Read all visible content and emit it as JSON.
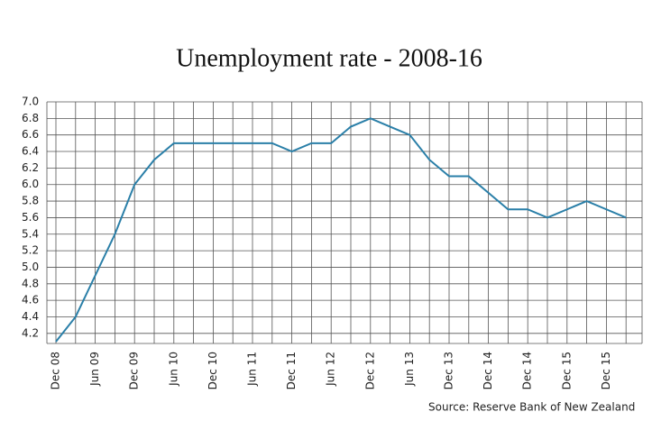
{
  "chart_data": {
    "type": "line",
    "title": "Unemployment rate - 2008-16",
    "source": "Source: Reserve Bank of New Zealand",
    "categories": [
      "Dec 08",
      null,
      "Jun 09",
      null,
      "Dec 09",
      null,
      "Jun 10",
      null,
      "Dec 10",
      null,
      "Jun 11",
      null,
      "Dec 11",
      null,
      "Jun 12",
      null,
      "Dec 12",
      null,
      "Jun 13",
      null,
      "Dec 13",
      null,
      "Dec 14",
      null,
      "Dec 14",
      null,
      "Dec 15",
      null,
      "Dec 15",
      null
    ],
    "series": [
      {
        "name": "Unemployment rate",
        "color": "#2a7fa8",
        "values": [
          4.1,
          4.4,
          4.9,
          5.4,
          6.0,
          6.3,
          6.5,
          6.5,
          6.5,
          6.5,
          6.5,
          6.5,
          6.4,
          6.5,
          6.5,
          6.7,
          6.8,
          6.7,
          6.6,
          6.3,
          6.1,
          6.1,
          5.9,
          5.7,
          5.7,
          5.6,
          5.7,
          5.8,
          5.7,
          5.6
        ]
      }
    ],
    "ylim": [
      4.1,
      7.0
    ],
    "yticks": [
      4.2,
      4.4,
      4.6,
      4.8,
      {
        "value": 5.0,
        "label": "5.0"
      },
      5.2,
      5.4,
      5.6,
      5.8,
      {
        "value": 6.0,
        "label": "6.0"
      },
      6.2,
      6.4,
      6.6,
      6.8,
      {
        "value": 7.0,
        "label": "7.0"
      }
    ],
    "grid": true
  }
}
